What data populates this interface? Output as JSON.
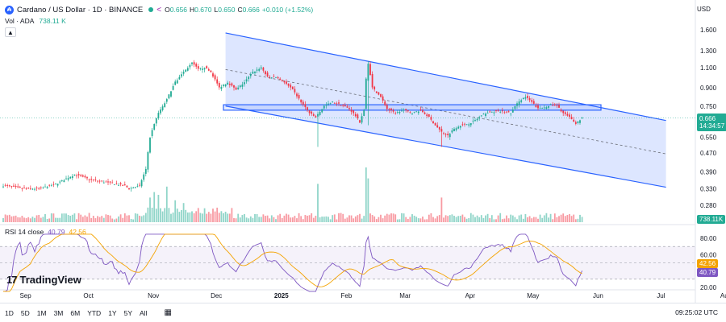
{
  "header": {
    "coin_letter": "₳",
    "title": "Cardano / US Dollar · 1D · BINANCE",
    "share_icon": "share-icon",
    "ohlc": [
      {
        "label": "O",
        "value": "0.656"
      },
      {
        "label": "H",
        "value": "0.670"
      },
      {
        "label": "L",
        "value": "0.650"
      },
      {
        "label": "C",
        "value": "0.666"
      }
    ],
    "change": "+0.010 (+1.52%)",
    "currency": "USD"
  },
  "volume": {
    "label": "Vol · ADA",
    "value": "738.11 K",
    "tag": "738.11K"
  },
  "price_tag": {
    "value": "0.666",
    "countdown": "14:34:57"
  },
  "rsi": {
    "label": "RSI 14 close",
    "value1": "40.79",
    "value2": "42.56"
  },
  "logo": {
    "text": "TradingView"
  },
  "timeframes": [
    "1D",
    "5D",
    "1M",
    "3M",
    "6M",
    "YTD",
    "1Y",
    "5Y",
    "All"
  ],
  "clock": "09:25:02 UTC",
  "colors": {
    "up": "#22ab94",
    "down": "#f23645",
    "channel": "#2962ff",
    "rsi_line": "#7e57c2",
    "rsi_ma": "#f4a300"
  },
  "chart_data": {
    "type": "candlestick",
    "price_axis": {
      "ticks": [
        1.6,
        1.3,
        1.1,
        0.9,
        0.75,
        0.55,
        0.47,
        0.39,
        0.33,
        0.28
      ],
      "tick_labels": [
        "1.600",
        "1.300",
        "1.100",
        "0.900",
        "0.750",
        "0.550",
        "0.470",
        "0.390",
        "0.330",
        "0.280"
      ],
      "scale": "log"
    },
    "time_axis": {
      "labels": [
        "Sep",
        "Oct",
        "Nov",
        "Dec",
        "2025",
        "Feb",
        "Mar",
        "Apr",
        "May",
        "Jun",
        "Jul",
        "Aug"
      ]
    },
    "rsi_axis": {
      "ticks": [
        80,
        60,
        40,
        20
      ],
      "tick_labels": [
        "80.00",
        "60.00",
        "40.00",
        "20.00"
      ],
      "overbought": 70,
      "oversold": 30
    },
    "close_anchors": [
      [
        0,
        0.34
      ],
      [
        10,
        0.33
      ],
      [
        17,
        0.33
      ],
      [
        25,
        0.345
      ],
      [
        34,
        0.38
      ],
      [
        42,
        0.36
      ],
      [
        50,
        0.35
      ],
      [
        58,
        0.34
      ],
      [
        60,
        0.33
      ],
      [
        65,
        0.34
      ],
      [
        68,
        0.4
      ],
      [
        70,
        0.55
      ],
      [
        74,
        0.7
      ],
      [
        78,
        0.8
      ],
      [
        82,
        0.95
      ],
      [
        86,
        1.05
      ],
      [
        90,
        1.15
      ],
      [
        93,
        1.08
      ],
      [
        96,
        1.1
      ],
      [
        99,
        1.05
      ],
      [
        103,
        0.9
      ],
      [
        107,
        0.95
      ],
      [
        111,
        0.88
      ],
      [
        115,
        0.95
      ],
      [
        119,
        1.05
      ],
      [
        123,
        1.1
      ],
      [
        126,
        1.0
      ],
      [
        130,
        1.0
      ],
      [
        134,
        0.95
      ],
      [
        138,
        0.88
      ],
      [
        142,
        0.78
      ],
      [
        146,
        0.7
      ],
      [
        149,
        0.67
      ],
      [
        153,
        0.75
      ],
      [
        157,
        0.78
      ],
      [
        161,
        0.76
      ],
      [
        165,
        0.73
      ],
      [
        168,
        0.68
      ],
      [
        170,
        0.64
      ],
      [
        172,
        0.72
      ],
      [
        173,
        0.98
      ],
      [
        174,
        1.15
      ],
      [
        176,
        0.9
      ],
      [
        178,
        0.86
      ],
      [
        180,
        0.82
      ],
      [
        183,
        0.73
      ],
      [
        187,
        0.7
      ],
      [
        191,
        0.72
      ],
      [
        195,
        0.7
      ],
      [
        199,
        0.72
      ],
      [
        203,
        0.67
      ],
      [
        206,
        0.62
      ],
      [
        209,
        0.58
      ],
      [
        212,
        0.56
      ],
      [
        215,
        0.6
      ],
      [
        218,
        0.62
      ],
      [
        222,
        0.63
      ],
      [
        226,
        0.66
      ],
      [
        230,
        0.7
      ],
      [
        234,
        0.71
      ],
      [
        238,
        0.71
      ],
      [
        242,
        0.7
      ],
      [
        246,
        0.79
      ],
      [
        249,
        0.82
      ],
      [
        252,
        0.78
      ],
      [
        255,
        0.73
      ],
      [
        258,
        0.74
      ],
      [
        261,
        0.76
      ],
      [
        264,
        0.75
      ],
      [
        267,
        0.7
      ],
      [
        270,
        0.67
      ],
      [
        273,
        0.63
      ],
      [
        275,
        0.656
      ],
      [
        276,
        0.666
      ]
    ],
    "spikes": [
      {
        "bar": 150,
        "low": 0.5
      },
      {
        "bar": 174,
        "high": 1.17,
        "low": 0.62
      },
      {
        "bar": 209,
        "low": 0.5
      }
    ],
    "volume_spikes": [
      [
        70,
        0.45
      ],
      [
        72,
        0.55
      ],
      [
        74,
        0.5
      ],
      [
        78,
        0.65
      ],
      [
        82,
        0.4
      ],
      [
        86,
        0.35
      ],
      [
        150,
        0.7
      ],
      [
        173,
        1.0
      ],
      [
        174,
        0.8
      ],
      [
        209,
        0.45
      ]
    ],
    "annotations": [
      {
        "type": "parallel_channel",
        "start": [
          106,
          1.55
        ],
        "end": [
          316,
          0.65
        ],
        "lower_start": [
          106,
          0.75
        ],
        "lower_end": [
          316,
          0.335
        ],
        "midline": true
      },
      {
        "type": "rectangle",
        "from_bar": 105,
        "to_bar": 285,
        "top": 0.76,
        "bottom": 0.72
      }
    ]
  }
}
